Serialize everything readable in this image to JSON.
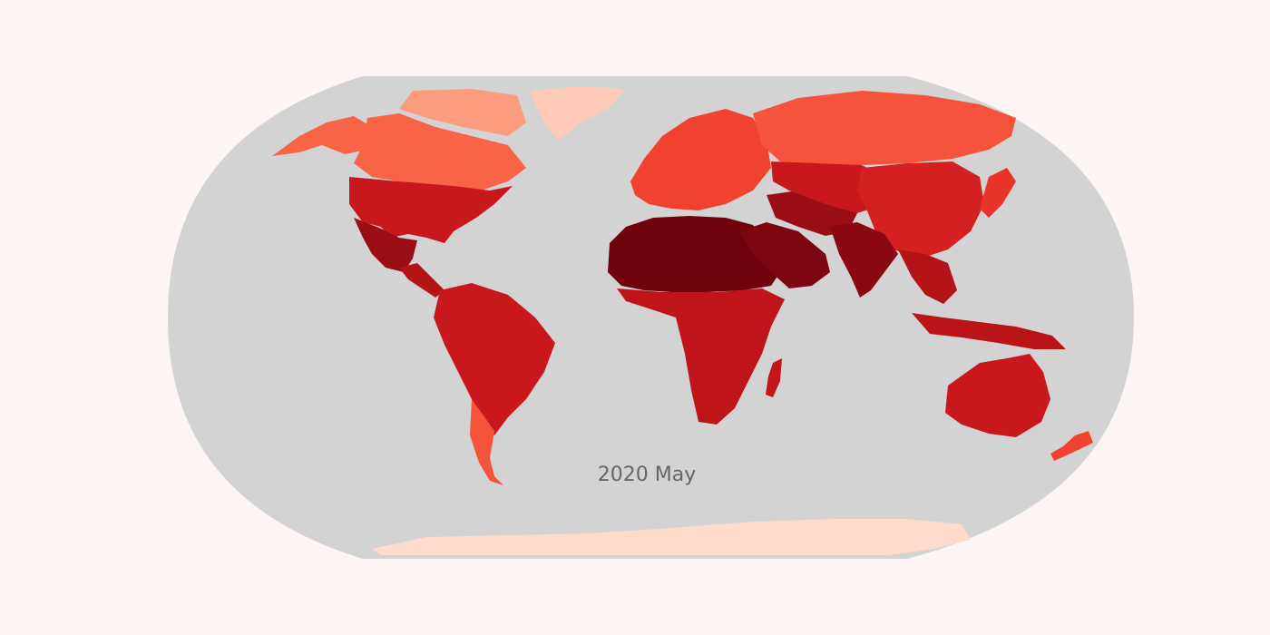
{
  "map": {
    "date_label": "2020 May",
    "projection": "robinson",
    "ocean_color": "#d3d3d3",
    "background_color": "#fdf5f3",
    "colormap": [
      "#fee0d2",
      "#fcbba1",
      "#fc9272",
      "#fb6a4a",
      "#ef3b2c",
      "#cb181d",
      "#a50f15",
      "#67000d"
    ],
    "regions": [
      {
        "name": "greenland",
        "level": 0.08
      },
      {
        "name": "alaska",
        "level": 0.45
      },
      {
        "name": "canada",
        "level": 0.45
      },
      {
        "name": "arctic-canada",
        "level": 0.25
      },
      {
        "name": "united-states",
        "level": 0.72
      },
      {
        "name": "mexico",
        "level": 0.88
      },
      {
        "name": "central-america",
        "level": 0.8
      },
      {
        "name": "south-america",
        "level": 0.72
      },
      {
        "name": "patagonia",
        "level": 0.5
      },
      {
        "name": "europe",
        "level": 0.55
      },
      {
        "name": "north-africa",
        "level": 0.98
      },
      {
        "name": "sub-saharan-africa",
        "level": 0.76
      },
      {
        "name": "arabia",
        "level": 0.95
      },
      {
        "name": "middle-east",
        "level": 0.88
      },
      {
        "name": "russia-siberia",
        "level": 0.5
      },
      {
        "name": "central-asia",
        "level": 0.72
      },
      {
        "name": "china",
        "level": 0.68
      },
      {
        "name": "india",
        "level": 0.92
      },
      {
        "name": "southeast-asia",
        "level": 0.8
      },
      {
        "name": "indonesia",
        "level": 0.78
      },
      {
        "name": "australia",
        "level": 0.72
      },
      {
        "name": "madagascar",
        "level": 0.75
      },
      {
        "name": "japan",
        "level": 0.6
      },
      {
        "name": "new-zealand",
        "level": 0.55
      },
      {
        "name": "antarctica",
        "level": 0.02
      }
    ]
  }
}
